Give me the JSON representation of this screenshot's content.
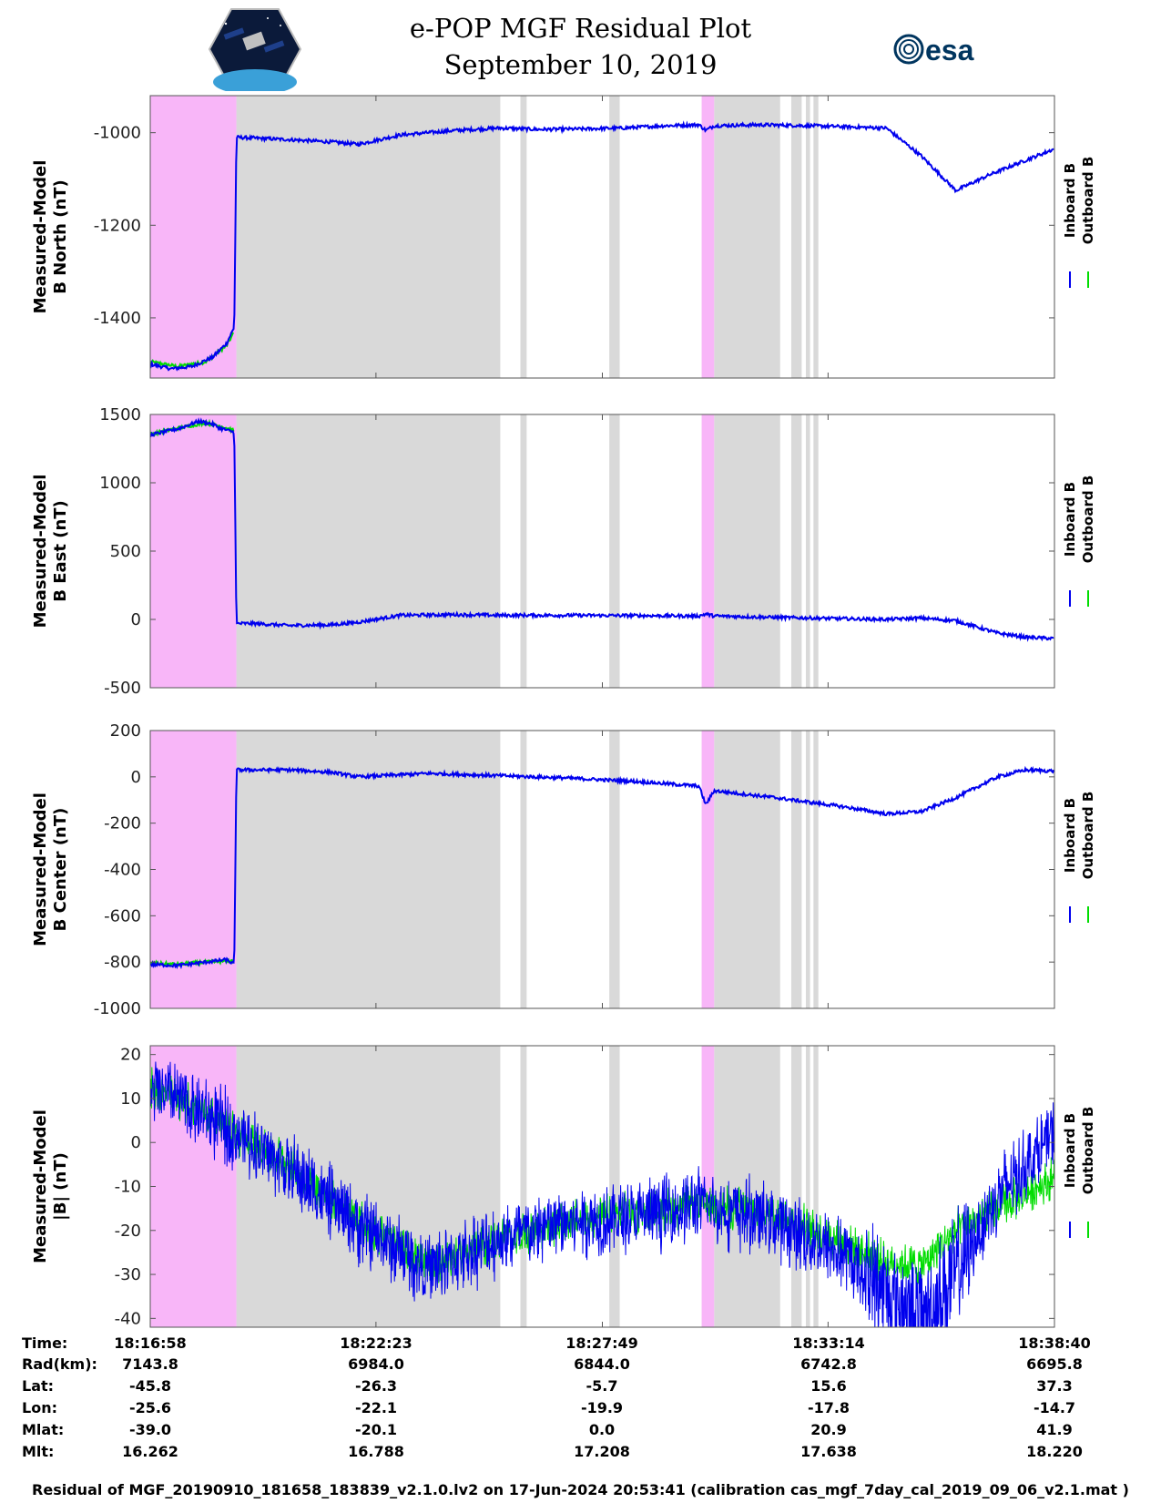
{
  "header": {
    "title": "e-POP MGF Residual Plot",
    "date": "September 10, 2019",
    "left_logo": "cassiope-satellite-logo",
    "right_logo_text": "esa",
    "right_logo": "esa-logo"
  },
  "colors": {
    "inboard": "#0000ee",
    "outboard": "#00dd00",
    "gray_band": "#d9d9d9",
    "pink_band": "#f8b6f8"
  },
  "legend": {
    "inboard": "Inboard B",
    "outboard": "Outboard B"
  },
  "x_axis": {
    "start_sec": 0,
    "end_sec": 1302,
    "tick_secs": [
      325,
      651,
      976
    ]
  },
  "bands": {
    "pink": [
      [
        0,
        124
      ],
      [
        794,
        812
      ]
    ],
    "gray": [
      [
        124,
        504
      ],
      [
        533,
        542
      ],
      [
        661,
        676
      ],
      [
        812,
        907
      ],
      [
        923,
        938
      ],
      [
        944,
        950
      ],
      [
        955,
        962
      ]
    ]
  },
  "chart_data": [
    {
      "type": "line",
      "ylabel_line1": "Measured-Model",
      "ylabel_line2": "B North (nT)",
      "ylim": [
        -1530,
        -920
      ],
      "yticks": [
        -1000,
        -1200,
        -1400
      ],
      "ytick_labels": [
        "-1000",
        "-1200",
        "-1400"
      ],
      "series": [
        {
          "name": "Outboard B",
          "points": [
            [
              0,
              -1495
            ],
            [
              40,
              -1505
            ],
            [
              80,
              -1495
            ],
            [
              110,
              -1460
            ],
            [
              121,
              -1430
            ]
          ]
        },
        {
          "name": "Inboard B",
          "points": [
            [
              0,
              -1500
            ],
            [
              30,
              -1510
            ],
            [
              60,
              -1505
            ],
            [
              90,
              -1485
            ],
            [
              110,
              -1455
            ],
            [
              121,
              -1420
            ],
            [
              124,
              -1010
            ],
            [
              200,
              -1015
            ],
            [
              260,
              -1020
            ],
            [
              300,
              -1025
            ],
            [
              360,
              -1005
            ],
            [
              440,
              -995
            ],
            [
              504,
              -990
            ],
            [
              560,
              -993
            ],
            [
              620,
              -992
            ],
            [
              680,
              -990
            ],
            [
              740,
              -985
            ],
            [
              790,
              -983
            ],
            [
              800,
              -995
            ],
            [
              812,
              -985
            ],
            [
              880,
              -983
            ],
            [
              950,
              -985
            ],
            [
              1060,
              -990
            ],
            [
              1110,
              -1050
            ],
            [
              1160,
              -1125
            ],
            [
              1210,
              -1090
            ],
            [
              1260,
              -1060
            ],
            [
              1302,
              -1035
            ]
          ]
        }
      ]
    },
    {
      "type": "line",
      "ylabel_line1": "Measured-Model",
      "ylabel_line2": "B East (nT)",
      "ylim": [
        -500,
        1500
      ],
      "yticks": [
        1500,
        1000,
        500,
        0,
        -500
      ],
      "ytick_labels": [
        "1500",
        "1000",
        "500",
        "0",
        "-500"
      ],
      "series": [
        {
          "name": "Outboard B",
          "points": [
            [
              0,
              1355
            ],
            [
              40,
              1400
            ],
            [
              80,
              1440
            ],
            [
              105,
              1410
            ],
            [
              121,
              1380
            ]
          ]
        },
        {
          "name": "Inboard B",
          "points": [
            [
              0,
              1350
            ],
            [
              40,
              1395
            ],
            [
              70,
              1450
            ],
            [
              90,
              1430
            ],
            [
              100,
              1400
            ],
            [
              121,
              1370
            ],
            [
              124,
              -30
            ],
            [
              150,
              -30
            ],
            [
              200,
              -45
            ],
            [
              260,
              -40
            ],
            [
              300,
              -20
            ],
            [
              360,
              30
            ],
            [
              440,
              35
            ],
            [
              504,
              30
            ],
            [
              600,
              30
            ],
            [
              700,
              28
            ],
            [
              790,
              25
            ],
            [
              800,
              40
            ],
            [
              812,
              25
            ],
            [
              900,
              15
            ],
            [
              1000,
              5
            ],
            [
              1060,
              0
            ],
            [
              1110,
              10
            ],
            [
              1160,
              -10
            ],
            [
              1220,
              -100
            ],
            [
              1260,
              -130
            ],
            [
              1302,
              -140
            ]
          ]
        }
      ]
    },
    {
      "type": "line",
      "ylabel_line1": "Measured-Model",
      "ylabel_line2": "B Center (nT)",
      "ylim": [
        -1000,
        200
      ],
      "yticks": [
        200,
        0,
        -200,
        -400,
        -600,
        -800,
        -1000
      ],
      "ytick_labels": [
        "200",
        "0",
        "-200",
        "-400",
        "-600",
        "-800",
        "-1000"
      ],
      "series": [
        {
          "name": "Outboard B",
          "points": [
            [
              0,
              -805
            ],
            [
              40,
              -810
            ],
            [
              80,
              -800
            ],
            [
              121,
              -795
            ]
          ]
        },
        {
          "name": "Inboard B",
          "points": [
            [
              0,
              -810
            ],
            [
              40,
              -815
            ],
            [
              80,
              -800
            ],
            [
              110,
              -790
            ],
            [
              121,
              -810
            ],
            [
              124,
              30
            ],
            [
              200,
              30
            ],
            [
              260,
              20
            ],
            [
              300,
              0
            ],
            [
              400,
              15
            ],
            [
              504,
              5
            ],
            [
              600,
              -5
            ],
            [
              700,
              -20
            ],
            [
              790,
              -40
            ],
            [
              800,
              -120
            ],
            [
              812,
              -60
            ],
            [
              900,
              -90
            ],
            [
              1000,
              -130
            ],
            [
              1060,
              -160
            ],
            [
              1110,
              -150
            ],
            [
              1160,
              -90
            ],
            [
              1220,
              0
            ],
            [
              1260,
              30
            ],
            [
              1302,
              25
            ]
          ]
        }
      ]
    },
    {
      "type": "line",
      "ylabel_line1": "Measured-Model",
      "ylabel_line2": "|B| (nT)",
      "ylim": [
        -42,
        22
      ],
      "yticks": [
        20,
        10,
        0,
        -10,
        -20,
        -30,
        -40
      ],
      "ytick_labels": [
        "20",
        "10",
        "0",
        "-10",
        "-20",
        "-30",
        "-40"
      ],
      "series": [
        {
          "name": "Outboard B",
          "points": [
            [
              0,
              12
            ],
            [
              40,
              10
            ],
            [
              80,
              7
            ],
            [
              124,
              2
            ],
            [
              200,
              -5
            ],
            [
              300,
              -18
            ],
            [
              400,
              -28
            ],
            [
              504,
              -22
            ],
            [
              600,
              -18
            ],
            [
              700,
              -16
            ],
            [
              790,
              -14
            ],
            [
              900,
              -16
            ],
            [
              1000,
              -23
            ],
            [
              1060,
              -27
            ],
            [
              1110,
              -28
            ],
            [
              1160,
              -20
            ],
            [
              1220,
              -15
            ],
            [
              1302,
              -8
            ]
          ]
        },
        {
          "name": "Inboard B",
          "points": [
            [
              0,
              12
            ],
            [
              40,
              10
            ],
            [
              80,
              6
            ],
            [
              124,
              2
            ],
            [
              200,
              -6
            ],
            [
              300,
              -19
            ],
            [
              400,
              -29
            ],
            [
              504,
              -22
            ],
            [
              600,
              -18
            ],
            [
              700,
              -17
            ],
            [
              790,
              -14
            ],
            [
              900,
              -18
            ],
            [
              1000,
              -26
            ],
            [
              1060,
              -34
            ],
            [
              1110,
              -40
            ],
            [
              1160,
              -30
            ],
            [
              1220,
              -12
            ],
            [
              1302,
              2
            ]
          ]
        }
      ]
    }
  ],
  "footer": {
    "row_labels": [
      "Time:",
      "Rad(km):",
      "Lat:",
      "Lon:",
      "Mlat:",
      "Mlt:"
    ],
    "columns": [
      [
        "18:16:58",
        "7143.8",
        "-45.8",
        "-25.6",
        "-39.0",
        "16.262"
      ],
      [
        "18:22:23",
        "6984.0",
        "-26.3",
        "-22.1",
        "-20.1",
        "16.788"
      ],
      [
        "18:27:49",
        "6844.0",
        "-5.7",
        "-19.9",
        "0.0",
        "17.208"
      ],
      [
        "18:33:14",
        "6742.8",
        "15.6",
        "-17.8",
        "20.9",
        "17.638"
      ],
      [
        "18:38:40",
        "6695.8",
        "37.3",
        "-14.7",
        "41.9",
        "18.220"
      ]
    ],
    "note": "Residual of MGF_20190910_181658_183839_v2.1.0.lv2 on 17-Jun-2024 20:53:41 (calibration cas_mgf_7day_cal_2019_09_06_v2.1.mat )"
  }
}
